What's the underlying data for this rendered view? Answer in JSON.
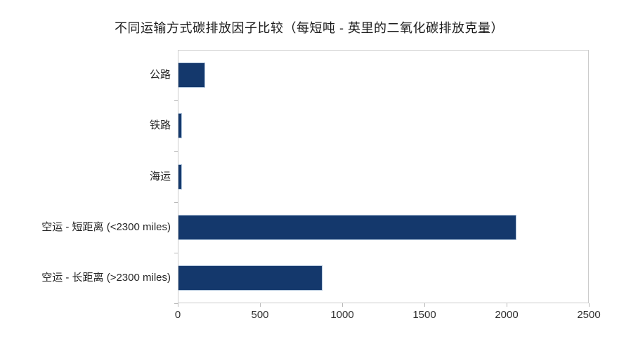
{
  "title": "不同运输方式碳排放因子比较（每短吨 - 英里的二氧化碳排放克量）",
  "chart_data": {
    "type": "bar",
    "orientation": "horizontal",
    "title": "不同运输方式碳排放因子比较（每短吨 - 英里的二氧化碳排放克量）",
    "categories": [
      "公路",
      "铁路",
      "海运",
      "空运 - 短距离 (<2300 miles)",
      "空运 - 长距离 (>2300 miles)"
    ],
    "values": [
      161,
      22,
      20,
      2056,
      876
    ],
    "xlabel": "",
    "ylabel": "",
    "xlim": [
      0,
      2500
    ],
    "x_ticks": [
      0,
      500,
      1000,
      1500,
      2000,
      2500
    ],
    "grid": false,
    "legend": false,
    "colors": {
      "bar_fill": "#14386c",
      "bar_border": "#aec3da",
      "axis_border": "#cccccc",
      "tick": "#b9b9b9",
      "title_text": "#1c1c1c",
      "label_text": "#262626",
      "background": "#ffffff"
    }
  }
}
